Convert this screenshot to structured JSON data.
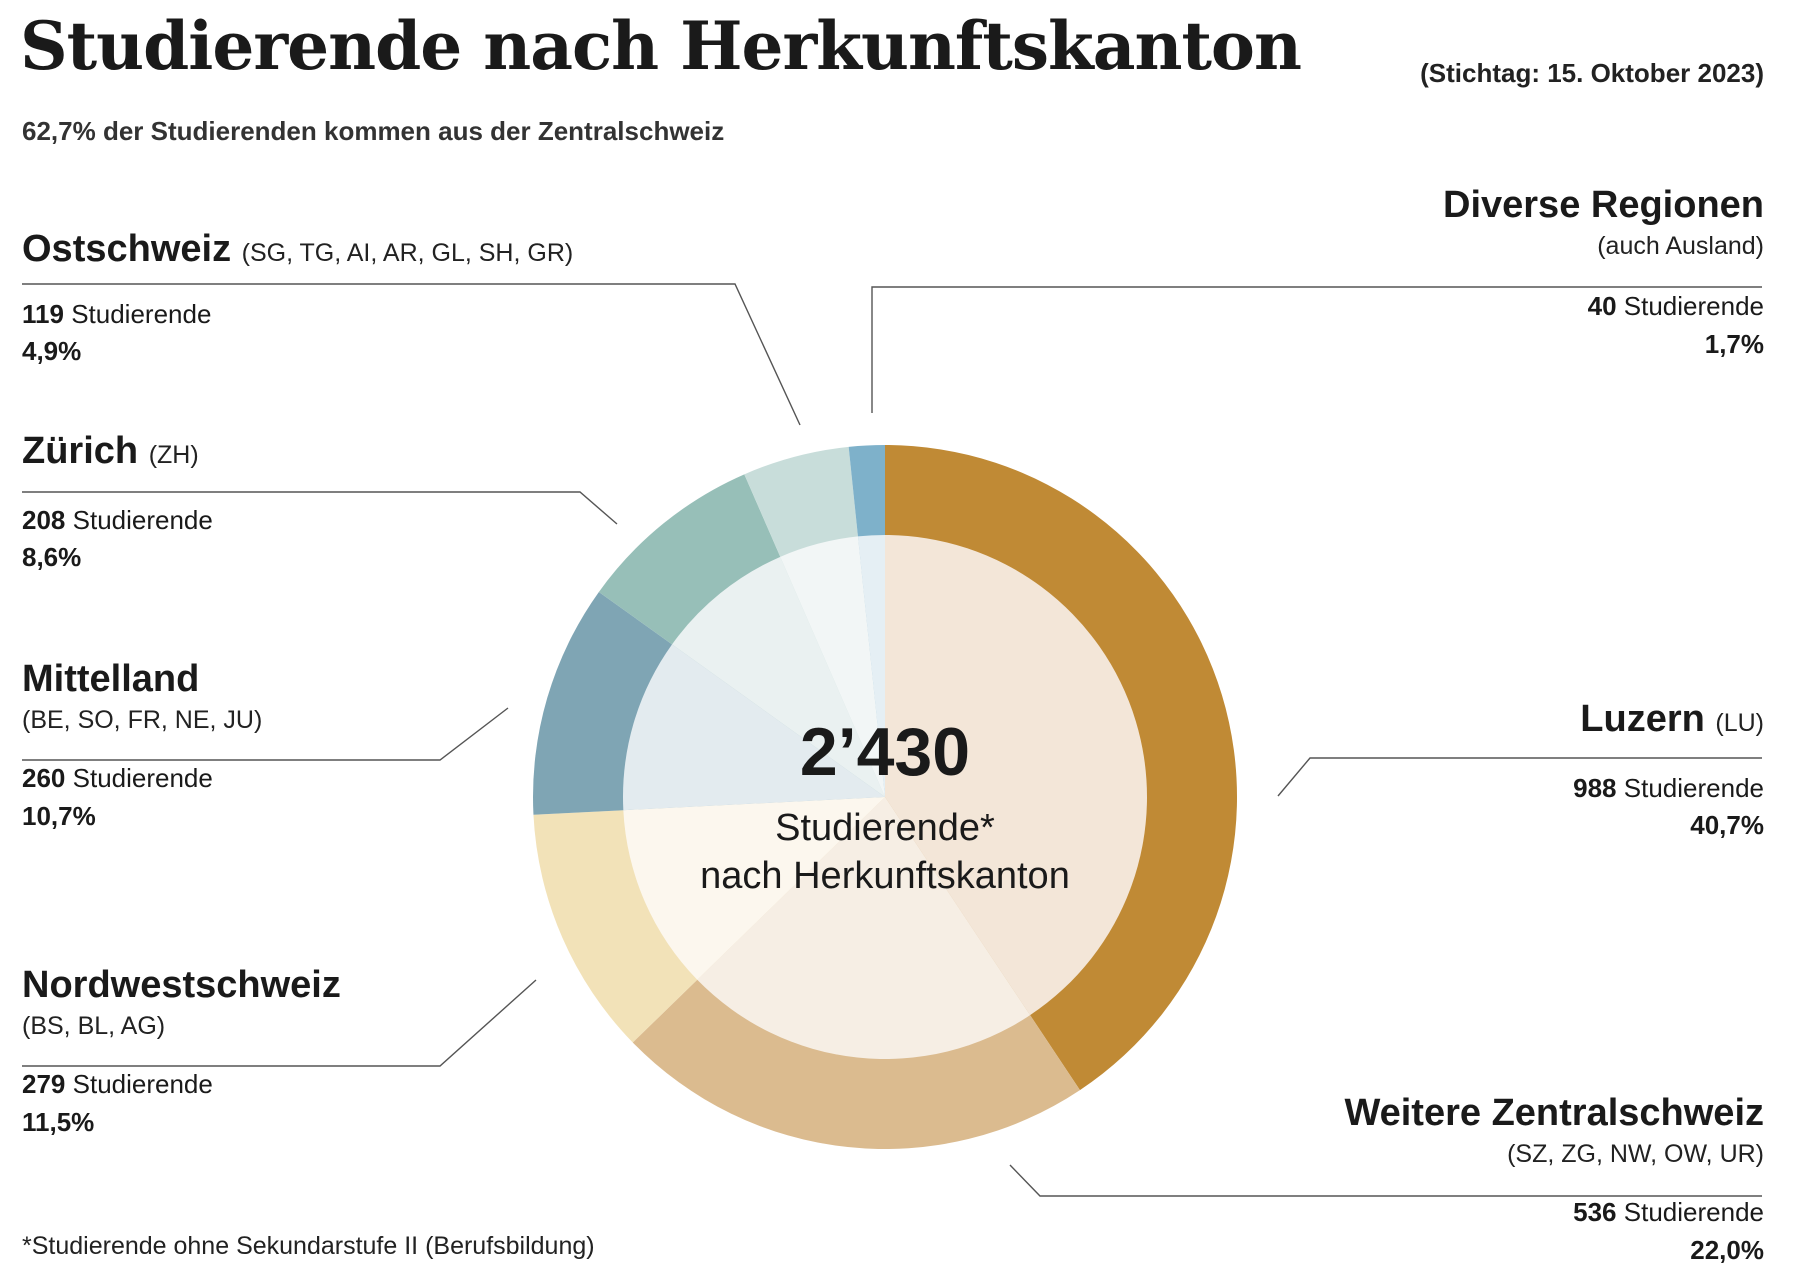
{
  "header": {
    "title": "Studierende nach Herkunftskanton",
    "date": "(Stichtag: 15. Oktober 2023)",
    "subtitle": "62,7% der Studierenden kommen aus der Zentralschweiz"
  },
  "center": {
    "total": "2’430",
    "line1": "Studierende*",
    "line2": "nach Herkunftskanton"
  },
  "footnote": "*Studierende ohne Sekundarstufe II (Berufsbildung)",
  "unit_label": "Studierende",
  "chart_data": {
    "type": "pie",
    "variant": "donut",
    "total": 2430,
    "series": [
      {
        "name": "Luzern",
        "code": "(LU)",
        "value": 988,
        "percent": "40,7%",
        "color": "#C08A35",
        "inner_color": "#F3E6D8"
      },
      {
        "name": "Weitere Zentralschweiz",
        "code": "(SZ, ZG, NW, OW, UR)",
        "value": 536,
        "percent": "22,0%",
        "color": "#DBBB8F",
        "inner_color": "#F6EEE4"
      },
      {
        "name": "Nordwestschweiz",
        "code": "(BS, BL, AG)",
        "value": 279,
        "percent": "11,5%",
        "color": "#F2E2B8",
        "inner_color": "#FCF7EE"
      },
      {
        "name": "Mittelland",
        "code": "(BE, SO, FR, NE, JU)",
        "value": 260,
        "percent": "10,7%",
        "color": "#7FA5B4",
        "inner_color": "#E3EBEF"
      },
      {
        "name": "Zürich",
        "code": "(ZH)",
        "value": 208,
        "percent": "8,6%",
        "color": "#97BFB8",
        "inner_color": "#EAF1F1"
      },
      {
        "name": "Ostschweiz",
        "code": "(SG, TG, AI, AR, GL, SH, GR)",
        "value": 119,
        "percent": "4,9%",
        "color": "#C8DDDA",
        "inner_color": "#F2F6F6"
      },
      {
        "name": "Diverse Regionen",
        "code": "(auch Ausland)",
        "value": 40,
        "percent": "1,7%",
        "color": "#7EB1CA",
        "inner_color": "#E5EFF4"
      }
    ]
  }
}
